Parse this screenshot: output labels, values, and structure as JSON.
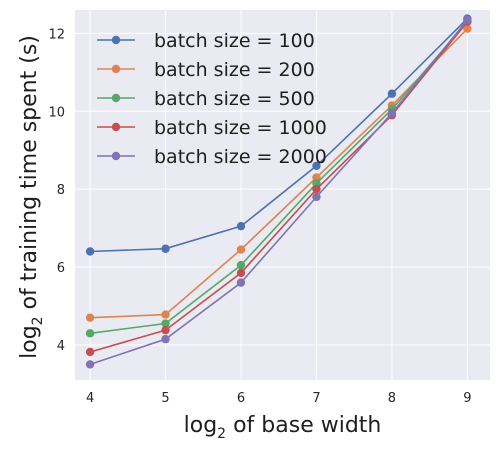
{
  "chart_data": {
    "type": "line",
    "title": "",
    "xlabel": {
      "base": "log",
      "sub": "2",
      "rest": " of base width"
    },
    "ylabel": {
      "base": "log",
      "sub": "2",
      "rest": " of training time spent (s)"
    },
    "x": [
      4,
      5,
      6,
      7,
      8,
      9
    ],
    "xlim": [
      3.8,
      9.3
    ],
    "ylim": [
      3.1,
      12.6
    ],
    "xticks": [
      4,
      5,
      6,
      7,
      8,
      9
    ],
    "yticks": [
      4,
      6,
      8,
      10,
      12
    ],
    "grid": true,
    "legend_position": "top-left",
    "background": "#eaeaf2",
    "series": [
      {
        "name": "batch size = 100",
        "color": "#4c72b0",
        "values": [
          6.4,
          6.47,
          7.05,
          8.6,
          10.45,
          12.38
        ]
      },
      {
        "name": "batch size = 200",
        "color": "#dd8452",
        "values": [
          4.7,
          4.78,
          6.45,
          8.3,
          10.15,
          12.12
        ]
      },
      {
        "name": "batch size = 500",
        "color": "#55a868",
        "values": [
          4.3,
          4.55,
          6.05,
          8.15,
          10.05,
          12.3
        ]
      },
      {
        "name": "batch size = 1000",
        "color": "#c44e52",
        "values": [
          3.82,
          4.38,
          5.85,
          8.0,
          9.9,
          12.3
        ]
      },
      {
        "name": "batch size = 2000",
        "color": "#8172b3",
        "values": [
          3.5,
          4.15,
          5.6,
          7.8,
          9.95,
          12.35
        ]
      }
    ]
  }
}
